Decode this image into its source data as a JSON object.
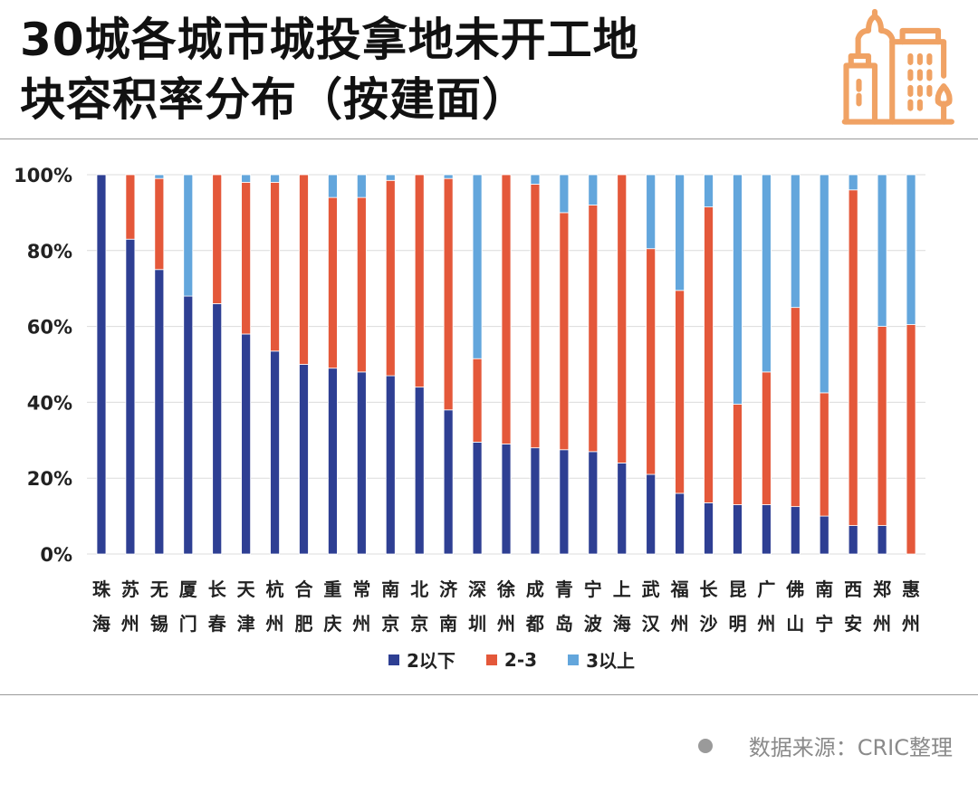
{
  "title": {
    "line1": "30城各城市城投拿地未开工地",
    "line2": "块容积率分布（按建面）"
  },
  "source": "数据来源：CRIC整理",
  "colors": {
    "low": "#2e3f93",
    "mid": "#e4583a",
    "high": "#63a6dc",
    "accent": "#f0a264"
  },
  "chart_data": {
    "type": "bar",
    "stacked": true,
    "title": "30城各城市城投拿地未开工地块容积率分布（按建面）",
    "xlabel": "",
    "ylabel": "",
    "ylim": [
      0,
      100
    ],
    "yticks": [
      "0%",
      "20%",
      "40%",
      "60%",
      "80%",
      "100%"
    ],
    "legend_position": "bottom",
    "grid": true,
    "categories": [
      "珠海",
      "苏州",
      "无锡",
      "厦门",
      "长春",
      "天津",
      "杭州",
      "合肥",
      "重庆",
      "常州",
      "南京",
      "北京",
      "济南",
      "深圳",
      "徐州",
      "成都",
      "青岛",
      "宁波",
      "上海",
      "武汉",
      "福州",
      "长沙",
      "昆明",
      "广州",
      "佛山",
      "南宁",
      "西安",
      "郑州",
      "惠州"
    ],
    "series": [
      {
        "name": "2以下",
        "values": [
          100,
          83,
          75,
          68,
          66,
          58,
          53.5,
          50,
          49,
          48,
          47,
          44,
          38,
          29.5,
          29,
          28,
          27.5,
          27,
          24,
          21,
          16,
          13.5,
          13,
          13,
          12.5,
          10,
          7.5,
          7.5,
          0
        ]
      },
      {
        "name": "2-3",
        "values": [
          0,
          17,
          24,
          0,
          34,
          40,
          44.5,
          50,
          45,
          46,
          51.5,
          56,
          61,
          22,
          71,
          69.5,
          62.5,
          65,
          76,
          59.5,
          53.5,
          78,
          26.5,
          35,
          52.5,
          32.5,
          88.5,
          52.5,
          60.5
        ]
      },
      {
        "name": "3以上",
        "values": [
          0,
          0,
          1,
          32,
          0,
          2,
          2,
          0,
          6,
          6,
          1.5,
          0,
          1,
          48.5,
          0,
          2.5,
          10,
          8,
          0,
          19.5,
          30.5,
          8.5,
          60.5,
          52,
          35,
          57.5,
          4,
          40,
          39.5
        ]
      }
    ]
  }
}
